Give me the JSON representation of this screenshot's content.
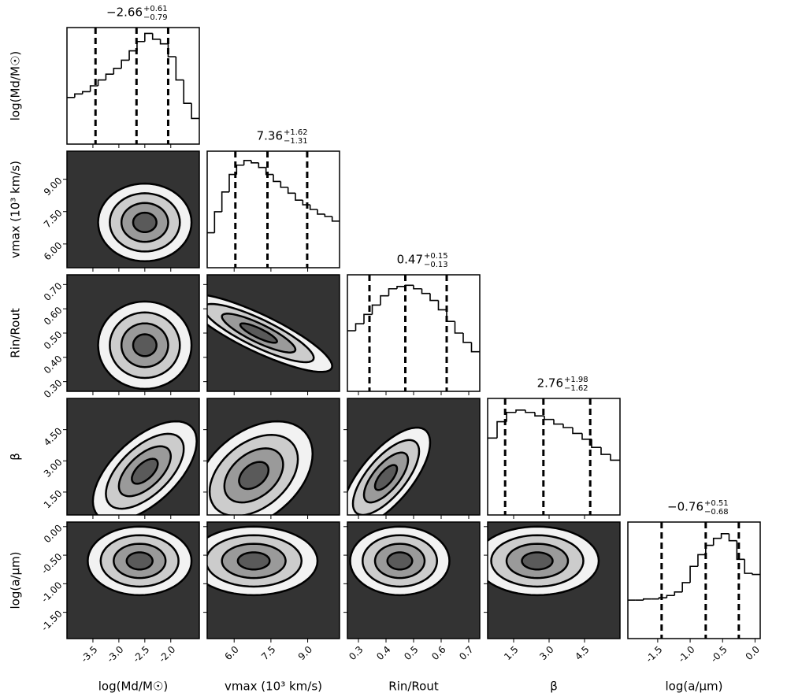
{
  "chart_data": {
    "type": "corner",
    "hist_ylim": [
      0,
      100
    ],
    "levels": [
      0.5,
      1.0,
      1.5,
      2.0
    ],
    "background_color": "#333333",
    "fill_colors": [
      "#f2f2f2",
      "#cccccc",
      "#9a9a9a",
      "#5a5a5a"
    ],
    "line_color": "#000000",
    "params": [
      {
        "label": "log(Md/M☉)",
        "lim": [
          -4.0,
          -1.45
        ],
        "xticks": [
          {
            "value": -3.5,
            "label": "-3.5"
          },
          {
            "value": -3.0,
            "label": "-3.0"
          },
          {
            "value": -2.5,
            "label": "-2.5"
          },
          {
            "value": -2.0,
            "label": "-2.0"
          }
        ],
        "yticks": [],
        "title": "−2.66",
        "upper": "+0.61",
        "lower": "−0.79",
        "quantiles": [
          -3.45,
          -2.66,
          -2.05
        ],
        "bins": [
          -4.0,
          -3.85,
          -3.7,
          -3.55,
          -3.4,
          -3.25,
          -3.1,
          -2.95,
          -2.8,
          -2.65,
          -2.5,
          -2.35,
          -2.2,
          -2.05,
          -1.9,
          -1.75,
          -1.6,
          -1.45
        ],
        "counts": [
          40,
          43,
          45,
          50,
          55,
          60,
          65,
          72,
          80,
          88,
          95,
          90,
          86,
          75,
          55,
          35,
          22
        ],
        "joint": []
      },
      {
        "label": "vmax (10³ km/s)",
        "lim": [
          4.9,
          10.3
        ],
        "xticks": [
          {
            "value": 6.0,
            "label": "6.0"
          },
          {
            "value": 7.5,
            "label": "7.5"
          },
          {
            "value": 9.0,
            "label": "9.0"
          }
        ],
        "yticks": [
          {
            "value": 6.0,
            "label": "6.00"
          },
          {
            "value": 7.5,
            "label": "7.50"
          },
          {
            "value": 9.0,
            "label": "9.00"
          }
        ],
        "title": "7.36",
        "upper": "+1.62",
        "lower": "−1.31",
        "quantiles": [
          6.05,
          7.36,
          8.98
        ],
        "bins": [
          4.9,
          5.2,
          5.5,
          5.8,
          6.1,
          6.4,
          6.7,
          7.0,
          7.3,
          7.6,
          7.9,
          8.2,
          8.5,
          8.8,
          9.1,
          9.4,
          9.7,
          10.0,
          10.3
        ],
        "counts": [
          30,
          48,
          65,
          80,
          88,
          92,
          90,
          86,
          80,
          74,
          69,
          64,
          58,
          54,
          50,
          46,
          44,
          40
        ],
        "joint": [
          {
            "center": [
              -2.5,
              7.0
            ],
            "sigma": [
              0.45,
              0.9
            ],
            "corr": 0
          }
        ]
      },
      {
        "label": "Rin/Rout",
        "lim": [
          0.26,
          0.74
        ],
        "xticks": [
          0.3,
          0.4,
          0.5,
          0.6,
          0.7
        ],
        "yticks": [
          {
            "value": 0.3,
            "label": "0.30"
          },
          {
            "value": 0.4,
            "label": "0.40"
          },
          {
            "value": 0.5,
            "label": "0.50"
          },
          {
            "value": 0.6,
            "label": "0.60"
          },
          {
            "value": 0.7,
            "label": "0.70"
          }
        ],
        "title": "0.47",
        "upper": "+0.15",
        "lower": "−0.13",
        "quantiles": [
          0.34,
          0.47,
          0.62
        ],
        "bins": [
          0.26,
          0.29,
          0.32,
          0.35,
          0.38,
          0.41,
          0.44,
          0.47,
          0.5,
          0.53,
          0.56,
          0.59,
          0.62,
          0.65,
          0.68,
          0.71,
          0.74
        ],
        "counts": [
          52,
          58,
          66,
          74,
          82,
          88,
          90,
          91,
          88,
          84,
          78,
          70,
          60,
          50,
          42,
          34
        ],
        "joint": [
          {
            "center": [
              -2.5,
              0.45
            ],
            "sigma": [
              0.45,
              0.09
            ],
            "corr": 0
          },
          {
            "center": [
              7.0,
              0.5
            ],
            "sigma": [
              1.5,
              0.08
            ],
            "corr": -0.85
          }
        ]
      },
      {
        "label": "β",
        "lim": [
          0.4,
          6.0
        ],
        "xticks": [
          1.5,
          {
            "value": 3.0,
            "label": "3.0"
          },
          4.5
        ],
        "yticks": [
          {
            "value": 1.5,
            "label": "1.50"
          },
          {
            "value": 3.0,
            "label": "3.00"
          },
          {
            "value": 4.5,
            "label": "4.50"
          }
        ],
        "title": "2.76",
        "upper": "+1.98",
        "lower": "−1.62",
        "quantiles": [
          1.14,
          2.76,
          4.74
        ],
        "bins": [
          0.4,
          0.8,
          1.2,
          1.6,
          2.0,
          2.4,
          2.8,
          3.2,
          3.6,
          4.0,
          4.4,
          4.8,
          5.2,
          5.6,
          6.0
        ],
        "counts": [
          66,
          80,
          88,
          90,
          88,
          85,
          82,
          78,
          75,
          70,
          65,
          58,
          52,
          47
        ],
        "joint": [
          {
            "center": [
              -2.5,
              2.5
            ],
            "sigma": [
              0.5,
              1.2
            ],
            "corr": 0.6
          },
          {
            "center": [
              6.8,
              2.3
            ],
            "sigma": [
              1.2,
              1.3
            ],
            "corr": 0.4
          },
          {
            "center": [
              0.4,
              2.2
            ],
            "sigma": [
              0.08,
              1.2
            ],
            "corr": 0.7
          }
        ]
      },
      {
        "label": "log(a/μm)",
        "lim": [
          -1.96,
          0.08
        ],
        "xticks": [
          -1.5,
          {
            "value": -1.0,
            "label": "-1.0"
          },
          -0.5,
          {
            "value": 0.0,
            "label": "0.0"
          }
        ],
        "yticks": [
          {
            "value": -1.5,
            "label": "-1.50"
          },
          {
            "value": -1.0,
            "label": "-1.00"
          },
          {
            "value": -0.5,
            "label": "-0.50"
          },
          {
            "value": 0.0,
            "label": "0.00"
          }
        ],
        "title": "−0.76",
        "upper": "+0.51",
        "lower": "−0.68",
        "quantiles": [
          -1.44,
          -0.76,
          -0.25
        ],
        "bins": [
          -1.96,
          -1.84,
          -1.72,
          -1.6,
          -1.48,
          -1.36,
          -1.24,
          -1.12,
          -1.0,
          -0.88,
          -0.76,
          -0.64,
          -0.52,
          -0.4,
          -0.28,
          -0.16,
          -0.04,
          0.08
        ],
        "counts": [
          33,
          33,
          34,
          34,
          35,
          37,
          40,
          48,
          62,
          72,
          80,
          86,
          90,
          84,
          68,
          56,
          55
        ],
        "joint": [
          {
            "center": [
              -2.6,
              -0.6
            ],
            "sigma": [
              0.5,
              0.3
            ],
            "corr": 0
          },
          {
            "center": [
              6.8,
              -0.6
            ],
            "sigma": [
              1.3,
              0.3
            ],
            "corr": 0
          },
          {
            "center": [
              0.45,
              -0.6
            ],
            "sigma": [
              0.09,
              0.3
            ],
            "corr": 0
          },
          {
            "center": [
              2.5,
              -0.6
            ],
            "sigma": [
              1.3,
              0.3
            ],
            "corr": 0
          }
        ]
      }
    ]
  }
}
